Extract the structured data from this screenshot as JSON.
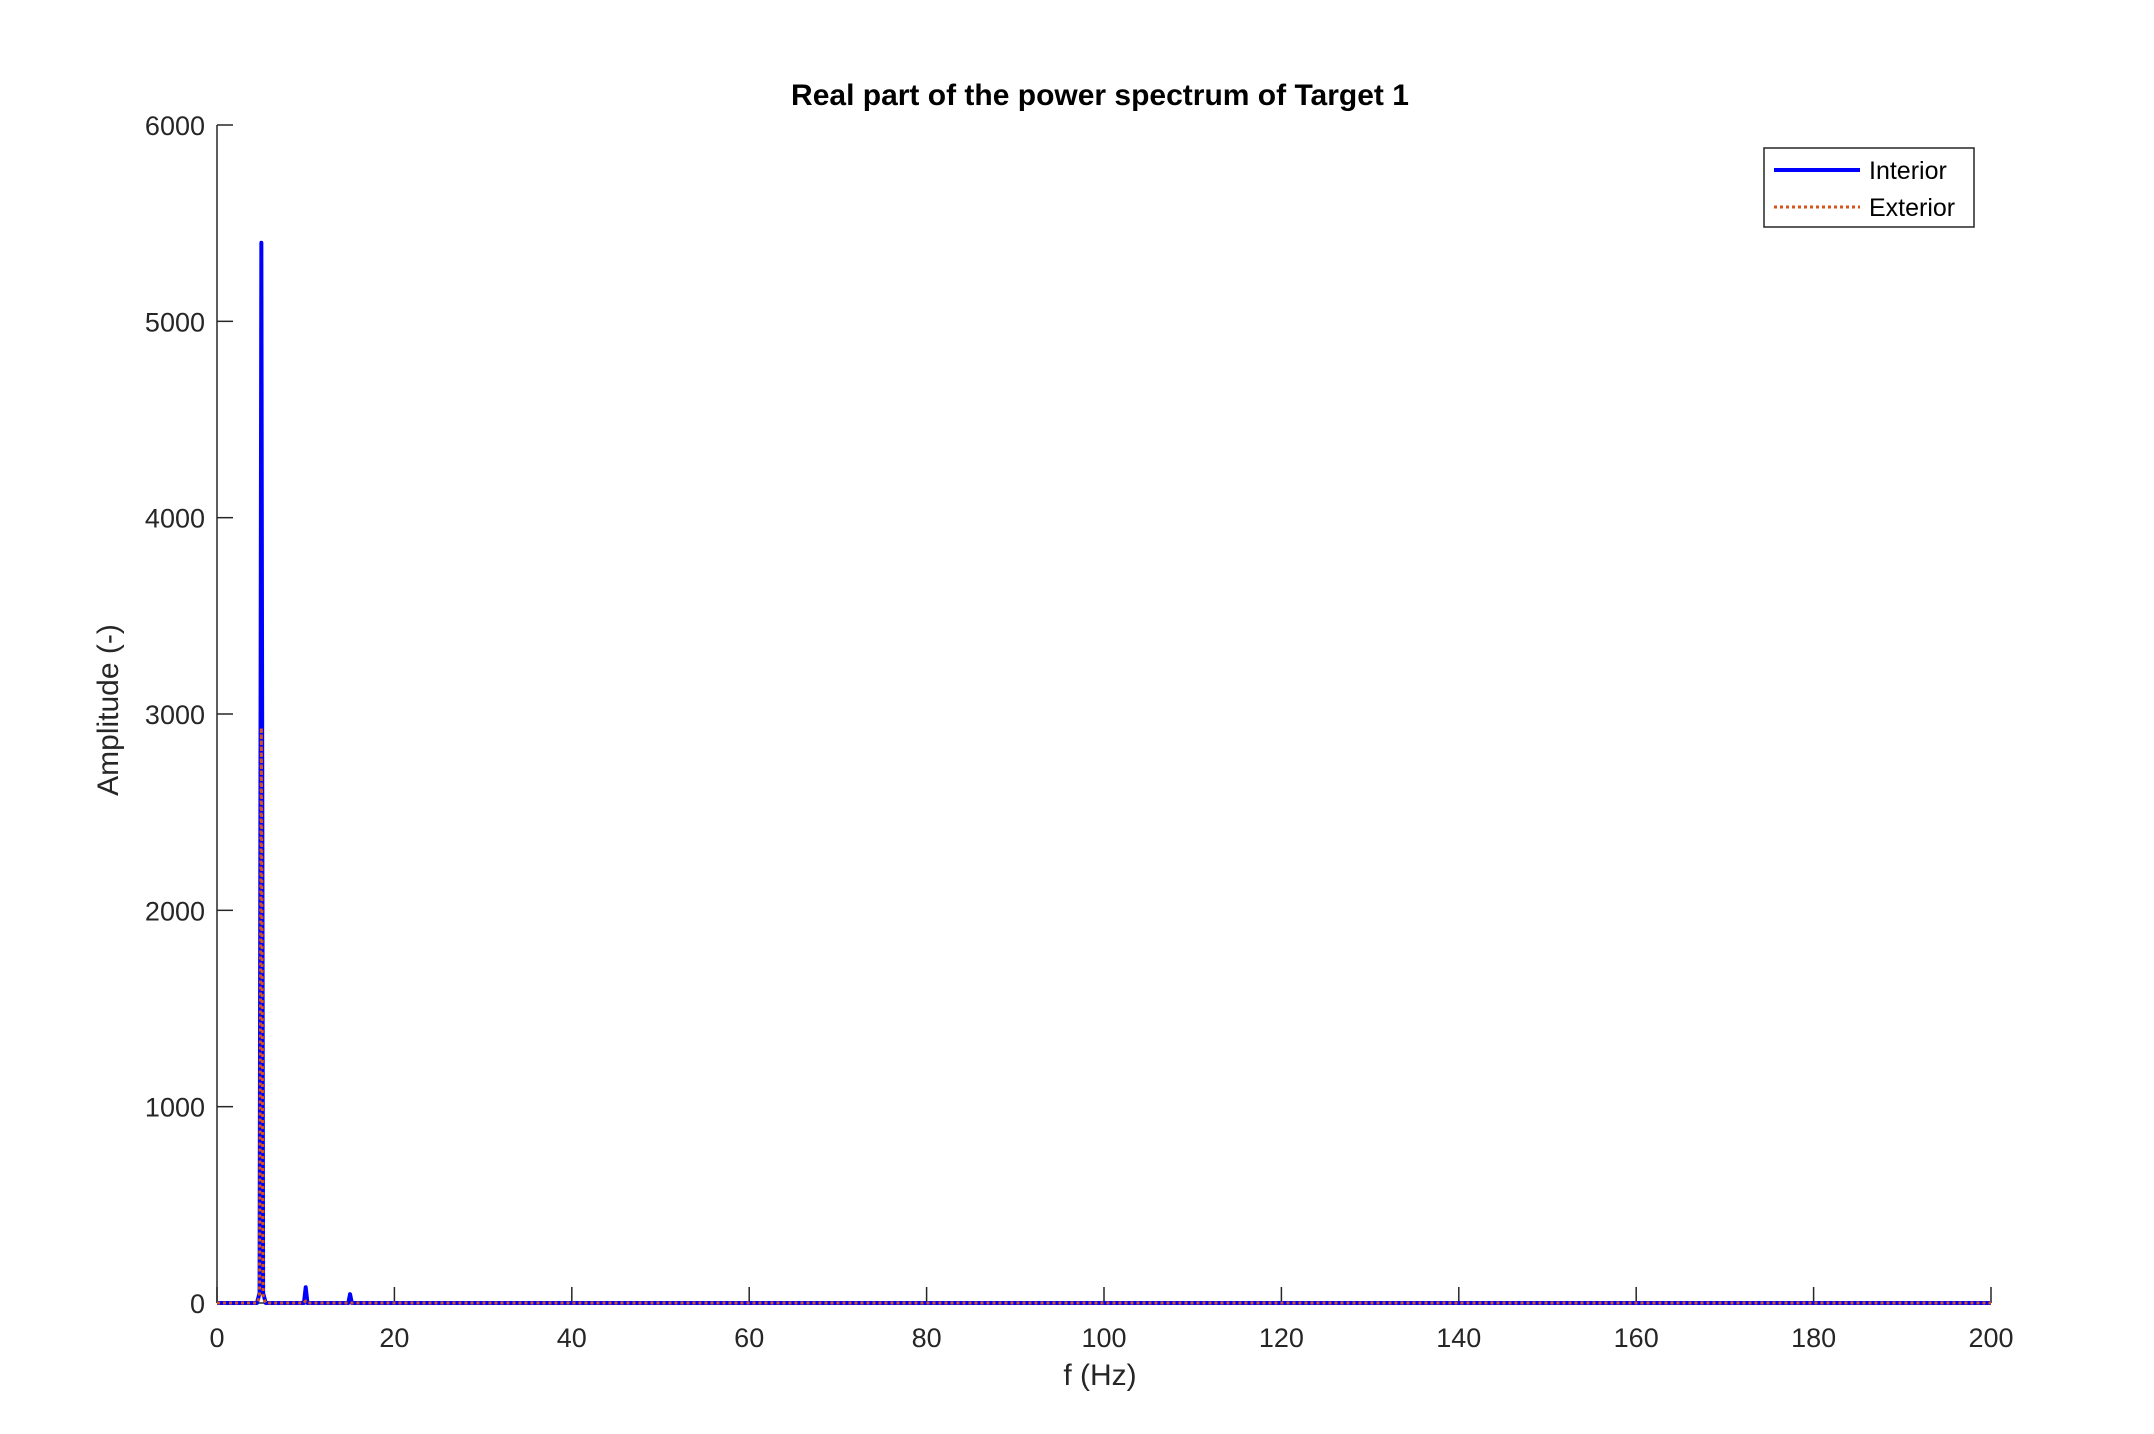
{
  "chart_data": {
    "type": "line",
    "title": "Real part of the power spectrum of Target 1",
    "xlabel": "f (Hz)",
    "ylabel": "Amplitude (-)",
    "xlim": [
      0,
      200
    ],
    "ylim": [
      0,
      6000
    ],
    "x_ticks": [
      0,
      20,
      40,
      60,
      80,
      100,
      120,
      140,
      160,
      180,
      200
    ],
    "y_ticks": [
      0,
      1000,
      2000,
      3000,
      4000,
      5000,
      6000
    ],
    "grid": false,
    "legend_position": "top-right",
    "series": [
      {
        "name": "Interior",
        "color": "#0000ff",
        "line_style": "solid",
        "x": [
          0,
          4.5,
          4.8,
          5.0,
          5.2,
          5.5,
          9.8,
          10.0,
          10.2,
          14.8,
          15.0,
          15.2,
          200
        ],
        "values": [
          0,
          0,
          50,
          5400,
          50,
          0,
          0,
          80,
          0,
          0,
          45,
          0,
          0
        ]
      },
      {
        "name": "Exterior",
        "color": "#d95319",
        "line_style": "dotted",
        "x": [
          0,
          4.5,
          4.8,
          5.0,
          5.2,
          5.5,
          9.8,
          10.0,
          10.2,
          200
        ],
        "values": [
          0,
          0,
          30,
          2930,
          30,
          0,
          0,
          10,
          0,
          0
        ]
      }
    ]
  }
}
